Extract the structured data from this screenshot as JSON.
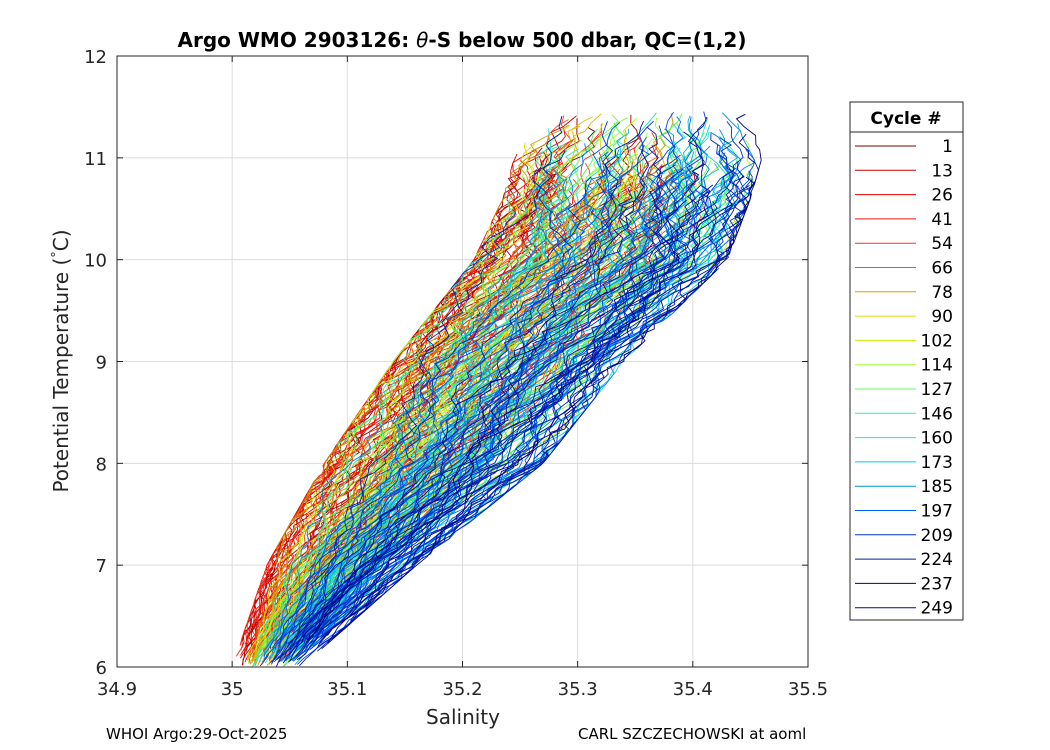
{
  "chart_data": {
    "type": "line",
    "title_prefix": "Argo WMO 2903126: ",
    "title_theta": "θ",
    "title_suffix": "-S below 500 dbar,  QC=(1,2)",
    "xlabel": "Salinity",
    "ylabel_prefix": "Potential Temperature (",
    "ylabel_degree": "°",
    "ylabel_suffix": "C)",
    "xlim": [
      34.9,
      35.5
    ],
    "ylim": [
      6,
      12
    ],
    "xticks": [
      "34.9",
      "35",
      "35.1",
      "35.2",
      "35.3",
      "35.4",
      "35.5"
    ],
    "yticks": [
      "6",
      "7",
      "8",
      "9",
      "10",
      "11",
      "12"
    ],
    "grid": true,
    "legend": {
      "title": "Cycle #",
      "placement": "outside-right",
      "entries": [
        "1",
        "13",
        "26",
        "41",
        "54",
        "66",
        "78",
        "90",
        "102",
        "114",
        "127",
        "146",
        "160",
        "173",
        "185",
        "197",
        "209",
        "224",
        "237",
        "249"
      ],
      "colors": [
        "#800000",
        "#C80000",
        "#E60000",
        "#F51010",
        "#FF3020",
        "#B47800",
        "#DCA000",
        "#E6DC00",
        "#C8F000",
        "#A0FF30",
        "#60F860",
        "#30F0A0",
        "#20E6E6",
        "#00C8F0",
        "#0096C8",
        "#0064FF",
        "#0032C8",
        "#00209C",
        "#000080",
        "#0000A0"
      ]
    },
    "series_envelope": {
      "description": "theta-S profiles per cycle, colour graded by cycle number",
      "salinity_at_6C": [
        35.0,
        35.06
      ],
      "salinity_at_8C": [
        35.09,
        35.27
      ],
      "salinity_at_10C": [
        35.21,
        35.43
      ],
      "salinity_at_11C": [
        35.24,
        35.46
      ],
      "max_temperature": 11.45
    }
  },
  "footer": {
    "left": "WHOI Argo:29-Oct-2025",
    "right": "CARL SZCZECHOWSKI at aoml"
  }
}
